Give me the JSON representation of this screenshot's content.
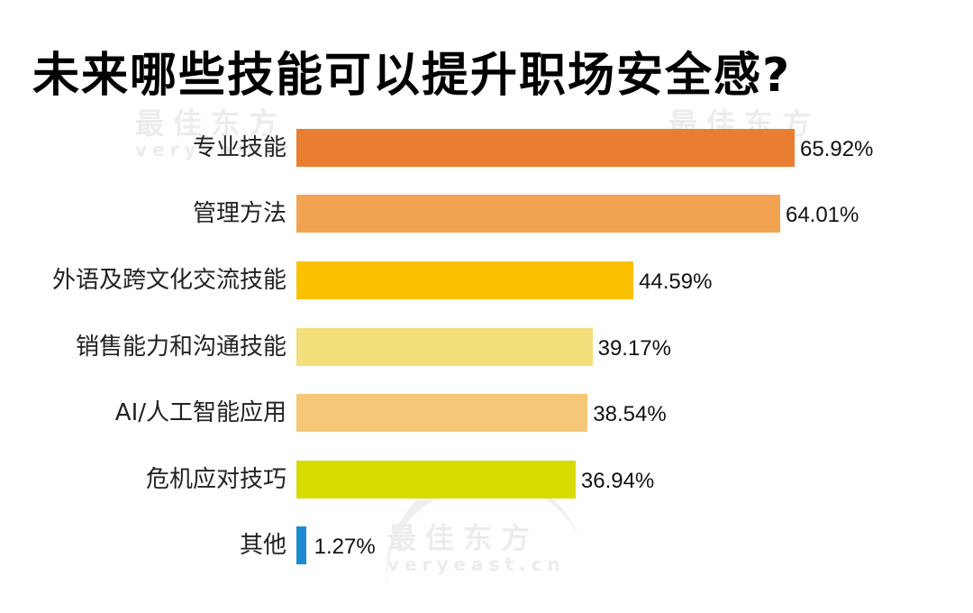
{
  "title": "未来哪些技能可以提升职场安全感?",
  "watermark": {
    "cn": "最佳东方",
    "en": "veryeast.cn"
  },
  "chart_data": {
    "type": "bar",
    "orientation": "horizontal",
    "title": "未来哪些技能可以提升职场安全感?",
    "xlabel": "",
    "ylabel": "",
    "unit": "%",
    "grid": false,
    "legend": null,
    "categories": [
      "专业技能",
      "管理方法",
      "外语及跨文化交流技能",
      "销售能力和沟通技能",
      "AI/人工智能应用",
      "危机应对技巧",
      "其他"
    ],
    "values": [
      65.92,
      64.01,
      44.59,
      39.17,
      38.54,
      36.94,
      1.27
    ],
    "value_labels": [
      "65.92%",
      "64.01%",
      "44.59%",
      "39.17%",
      "38.54%",
      "36.94%",
      "1.27%"
    ],
    "colors": [
      "#E97E31",
      "#F2A352",
      "#FBC000",
      "#F3DF7B",
      "#F6C777",
      "#D7DB00",
      "#1B8AD3"
    ]
  }
}
